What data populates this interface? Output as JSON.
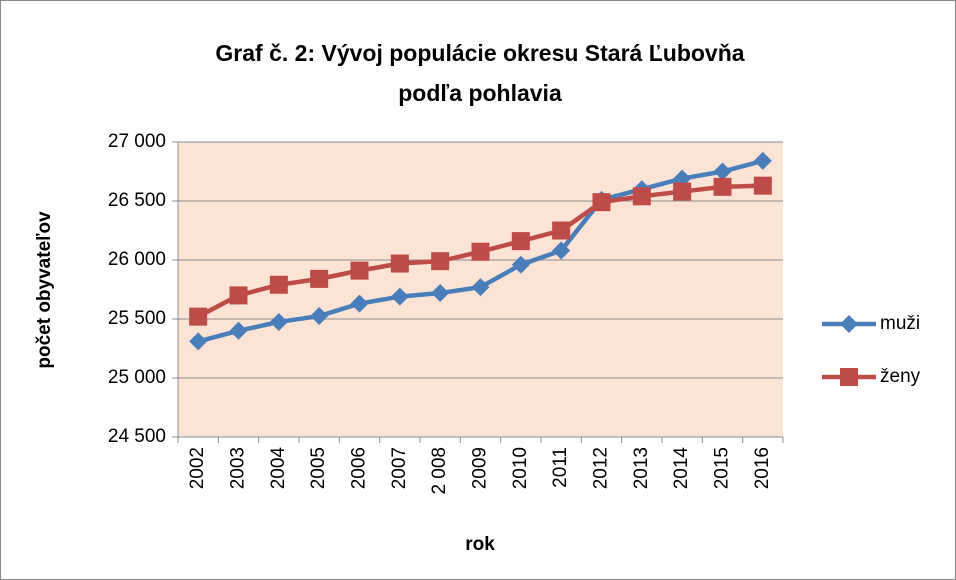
{
  "chart_data": {
    "type": "line",
    "title": [
      "Graf č. 2: Vývoj populácie okresu Stará Ľubovňa",
      "podľa pohlavia"
    ],
    "x_label": "rok",
    "y_label": "počet obyvateľov",
    "categories": [
      "2002",
      "2003",
      "2004",
      "2005",
      "2006",
      "2007",
      "2 008",
      "2009",
      "2010",
      "2011",
      "2012",
      "2013",
      "2014",
      "2015",
      "2016"
    ],
    "series": [
      {
        "name": "muži",
        "color": "#4a7ebb",
        "marker": "diamond",
        "values": [
          25310,
          25400,
          25475,
          25525,
          25630,
          25690,
          25720,
          25770,
          25960,
          26080,
          26510,
          26600,
          26690,
          26750,
          26840
        ]
      },
      {
        "name": "ženy",
        "color": "#be4b48",
        "marker": "square",
        "values": [
          25520,
          25700,
          25790,
          25840,
          25910,
          25970,
          25990,
          26070,
          26160,
          26250,
          26490,
          26540,
          26580,
          26620,
          26630
        ]
      }
    ],
    "ylim": [
      24500,
      27000
    ],
    "yticks": [
      {
        "value": 24500,
        "label": "24 500"
      },
      {
        "value": 25000,
        "label": "25 000"
      },
      {
        "value": 25500,
        "label": "25 500"
      },
      {
        "value": 26000,
        "label": "26 000"
      },
      {
        "value": 26500,
        "label": "26 500"
      },
      {
        "value": 27000,
        "label": "27 000"
      }
    ],
    "grid": true,
    "legend": "right"
  }
}
